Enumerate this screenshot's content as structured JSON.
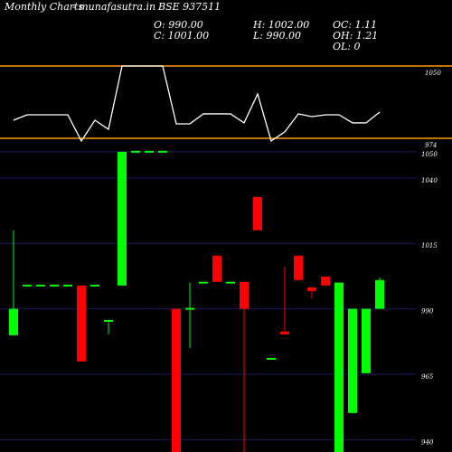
{
  "chart_data": [
    {
      "type": "line",
      "title": "Monthly Charts",
      "site": "- munafasutra.in",
      "symbol": "BSE 937511",
      "color": "#ffffff",
      "band_color": "#ff9900",
      "values": [
        993,
        998.7,
        998.7,
        998.7,
        998.7,
        971.2,
        993,
        983.5,
        1050,
        1050,
        1050,
        1050,
        989.2,
        989.2,
        999.7,
        999.7,
        999.7,
        990.2,
        1020.6,
        971.2,
        980.7,
        999.7,
        996.8,
        998.7,
        998.7,
        990.2,
        990.2,
        1001.6
      ],
      "ylim": [
        974,
        1050
      ],
      "yticks": [
        974,
        1050
      ]
    },
    {
      "type": "candlestick",
      "stats": [
        "O: 990.00",
        "H: 1002.00",
        "OC: 1.11",
        "C: 1001.00",
        "L: 990.00",
        "OH: 1.21",
        "OL: 0"
      ],
      "up_color": "#00ff00",
      "down_color": "#ff0000",
      "grid_color": "#1a1a66",
      "categories": [
        null,
        null,
        null,
        null,
        null,
        null,
        null,
        null,
        null,
        null,
        null,
        null,
        null,
        null,
        null,
        null,
        null,
        null,
        null,
        null,
        null,
        null,
        null,
        null,
        null,
        null,
        null,
        null
      ],
      "open": [
        979.9,
        998.9,
        998.9,
        998.9,
        998.9,
        998.9,
        998.9,
        985.4,
        998.9,
        1050,
        1050,
        1050,
        990,
        990,
        1000,
        1010.3,
        1000,
        1000.3,
        1032.7,
        970.9,
        981.3,
        1010.3,
        998.2,
        1002.3,
        935.3,
        950.2,
        965.4,
        990
      ],
      "high": [
        1020,
        998.9,
        998.9,
        998.9,
        998.9,
        998.9,
        998.9,
        985.4,
        1050,
        1050,
        1050,
        1050,
        990,
        1000,
        1000,
        1010.3,
        1000,
        1000.3,
        1032.7,
        970.9,
        1006.1,
        1010.3,
        998.2,
        1002.3,
        1000,
        990,
        990,
        1002
      ],
      "low": [
        979.9,
        998.9,
        998.9,
        998.9,
        998.9,
        969.9,
        998.9,
        980.2,
        998.9,
        1050,
        1050,
        1050,
        935.3,
        975,
        1000,
        1000.3,
        1000,
        935.3,
        1020,
        970.9,
        980.2,
        1001,
        994,
        998.9,
        935.3,
        950.2,
        965.4,
        990
      ],
      "close": [
        990,
        998.9,
        998.9,
        998.9,
        998.9,
        969.9,
        998.9,
        985.4,
        1050,
        1050,
        1050,
        1050,
        935.3,
        990,
        1000,
        1000.3,
        1000,
        990,
        1020,
        970.9,
        980.2,
        1001,
        996.8,
        998.9,
        1000,
        990,
        990,
        1001
      ],
      "ylim": [
        935.3,
        1051
      ],
      "yticks": [
        940,
        965,
        990,
        1015,
        1040,
        1050
      ]
    }
  ]
}
